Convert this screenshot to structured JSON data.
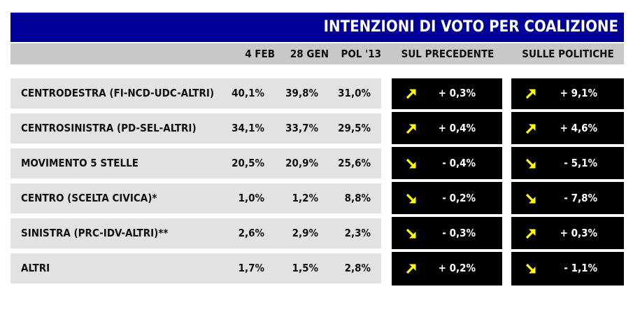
{
  "title": "INTENZIONI DI VOTO PER COALIZIONE",
  "colors": {
    "title_bg": "#000099",
    "header_bg": "#c8c8c8",
    "row_bg": "#e2e2e2",
    "delta_bg": "#000000",
    "arrow": "#ffff00"
  },
  "chart_data": {
    "type": "table",
    "title": "INTENZIONI DI VOTO PER COALIZIONE",
    "columns": [
      "4 FEB",
      "28 GEN",
      "POL '13",
      "SUL PRECEDENTE",
      "SULLE POLITICHE"
    ],
    "rows": [
      {
        "label": "CENTRODESTRA (FI-NCD-UDC-ALTRI)",
        "values": [
          "40,1%",
          "39,8%",
          "31,0%"
        ],
        "sul_precedente": {
          "dir": "up",
          "text": "+ 0,3%"
        },
        "sulle_politiche": {
          "dir": "up",
          "text": "+ 9,1%"
        }
      },
      {
        "label": "CENTROSINISTRA (PD-SEL-ALTRI)",
        "values": [
          "34,1%",
          "33,7%",
          "29,5%"
        ],
        "sul_precedente": {
          "dir": "up",
          "text": "+ 0,4%"
        },
        "sulle_politiche": {
          "dir": "up",
          "text": "+ 4,6%"
        }
      },
      {
        "label": "MOVIMENTO 5 STELLE",
        "values": [
          "20,5%",
          "20,9%",
          "25,6%"
        ],
        "sul_precedente": {
          "dir": "down",
          "text": "- 0,4%"
        },
        "sulle_politiche": {
          "dir": "down",
          "text": "- 5,1%"
        }
      },
      {
        "label": "CENTRO (SCELTA CIVICA)*",
        "values": [
          "1,0%",
          "1,2%",
          "8,8%"
        ],
        "sul_precedente": {
          "dir": "down",
          "text": "- 0,2%"
        },
        "sulle_politiche": {
          "dir": "down",
          "text": "- 7,8%"
        }
      },
      {
        "label": "SINISTRA (PRC-IDV-ALTRI)**",
        "values": [
          "2,6%",
          "2,9%",
          "2,3%"
        ],
        "sul_precedente": {
          "dir": "down",
          "text": "- 0,3%"
        },
        "sulle_politiche": {
          "dir": "up",
          "text": "+ 0,3%"
        }
      },
      {
        "label": "ALTRI",
        "values": [
          "1,7%",
          "1,5%",
          "2,8%"
        ],
        "sul_precedente": {
          "dir": "up",
          "text": "+ 0,2%"
        },
        "sulle_politiche": {
          "dir": "down",
          "text": "- 1,1%"
        }
      }
    ]
  }
}
